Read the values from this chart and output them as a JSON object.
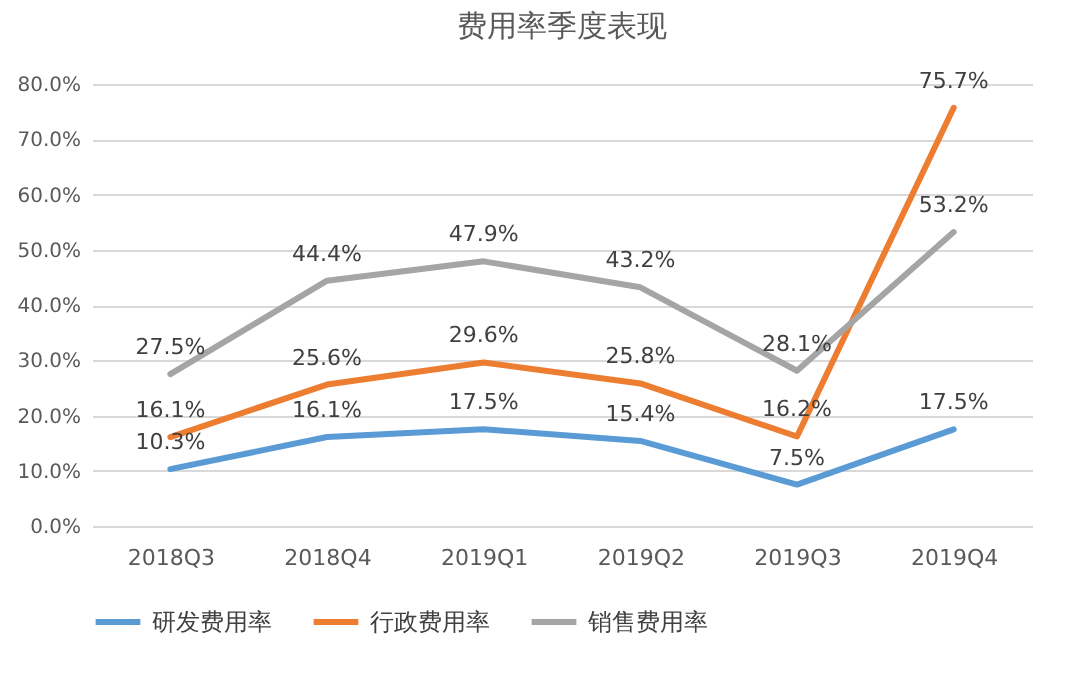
{
  "chart_data": {
    "type": "line",
    "title": "费用率季度表现",
    "categories": [
      "2018Q3",
      "2018Q4",
      "2019Q1",
      "2019Q2",
      "2019Q3",
      "2019Q4"
    ],
    "series": [
      {
        "name": "研发费用率",
        "color": "#5b9bd5",
        "values": [
          10.3,
          16.1,
          17.5,
          15.4,
          7.5,
          17.5
        ],
        "value_labels": [
          "10.3%",
          "16.1%",
          "17.5%",
          "15.4%",
          "7.5%",
          "17.5%"
        ]
      },
      {
        "name": "行政费用率",
        "color": "#ed7d31",
        "values": [
          16.1,
          25.6,
          29.6,
          25.8,
          16.2,
          75.7
        ],
        "value_labels": [
          "16.1%",
          "25.6%",
          "29.6%",
          "25.8%",
          "16.2%",
          "75.7%"
        ]
      },
      {
        "name": "销售费用率",
        "color": "#a5a5a5",
        "values": [
          27.5,
          44.4,
          47.9,
          43.2,
          28.1,
          53.2
        ],
        "value_labels": [
          "27.5%",
          "44.4%",
          "47.9%",
          "43.2%",
          "28.1%",
          "53.2%"
        ]
      }
    ],
    "ylim": [
      0,
      80
    ],
    "yticks": [
      {
        "value": 0,
        "label": "0.0%"
      },
      {
        "value": 10,
        "label": "10.0%"
      },
      {
        "value": 20,
        "label": "20.0%"
      },
      {
        "value": 30,
        "label": "30.0%"
      },
      {
        "value": 40,
        "label": "40.0%"
      },
      {
        "value": 50,
        "label": "50.0%"
      },
      {
        "value": 60,
        "label": "60.0%"
      },
      {
        "value": 70,
        "label": "70.0%"
      },
      {
        "value": 80,
        "label": "80.0%"
      }
    ],
    "grid": "y",
    "legend": "bottom",
    "marker": "none",
    "line_style": "solid"
  }
}
